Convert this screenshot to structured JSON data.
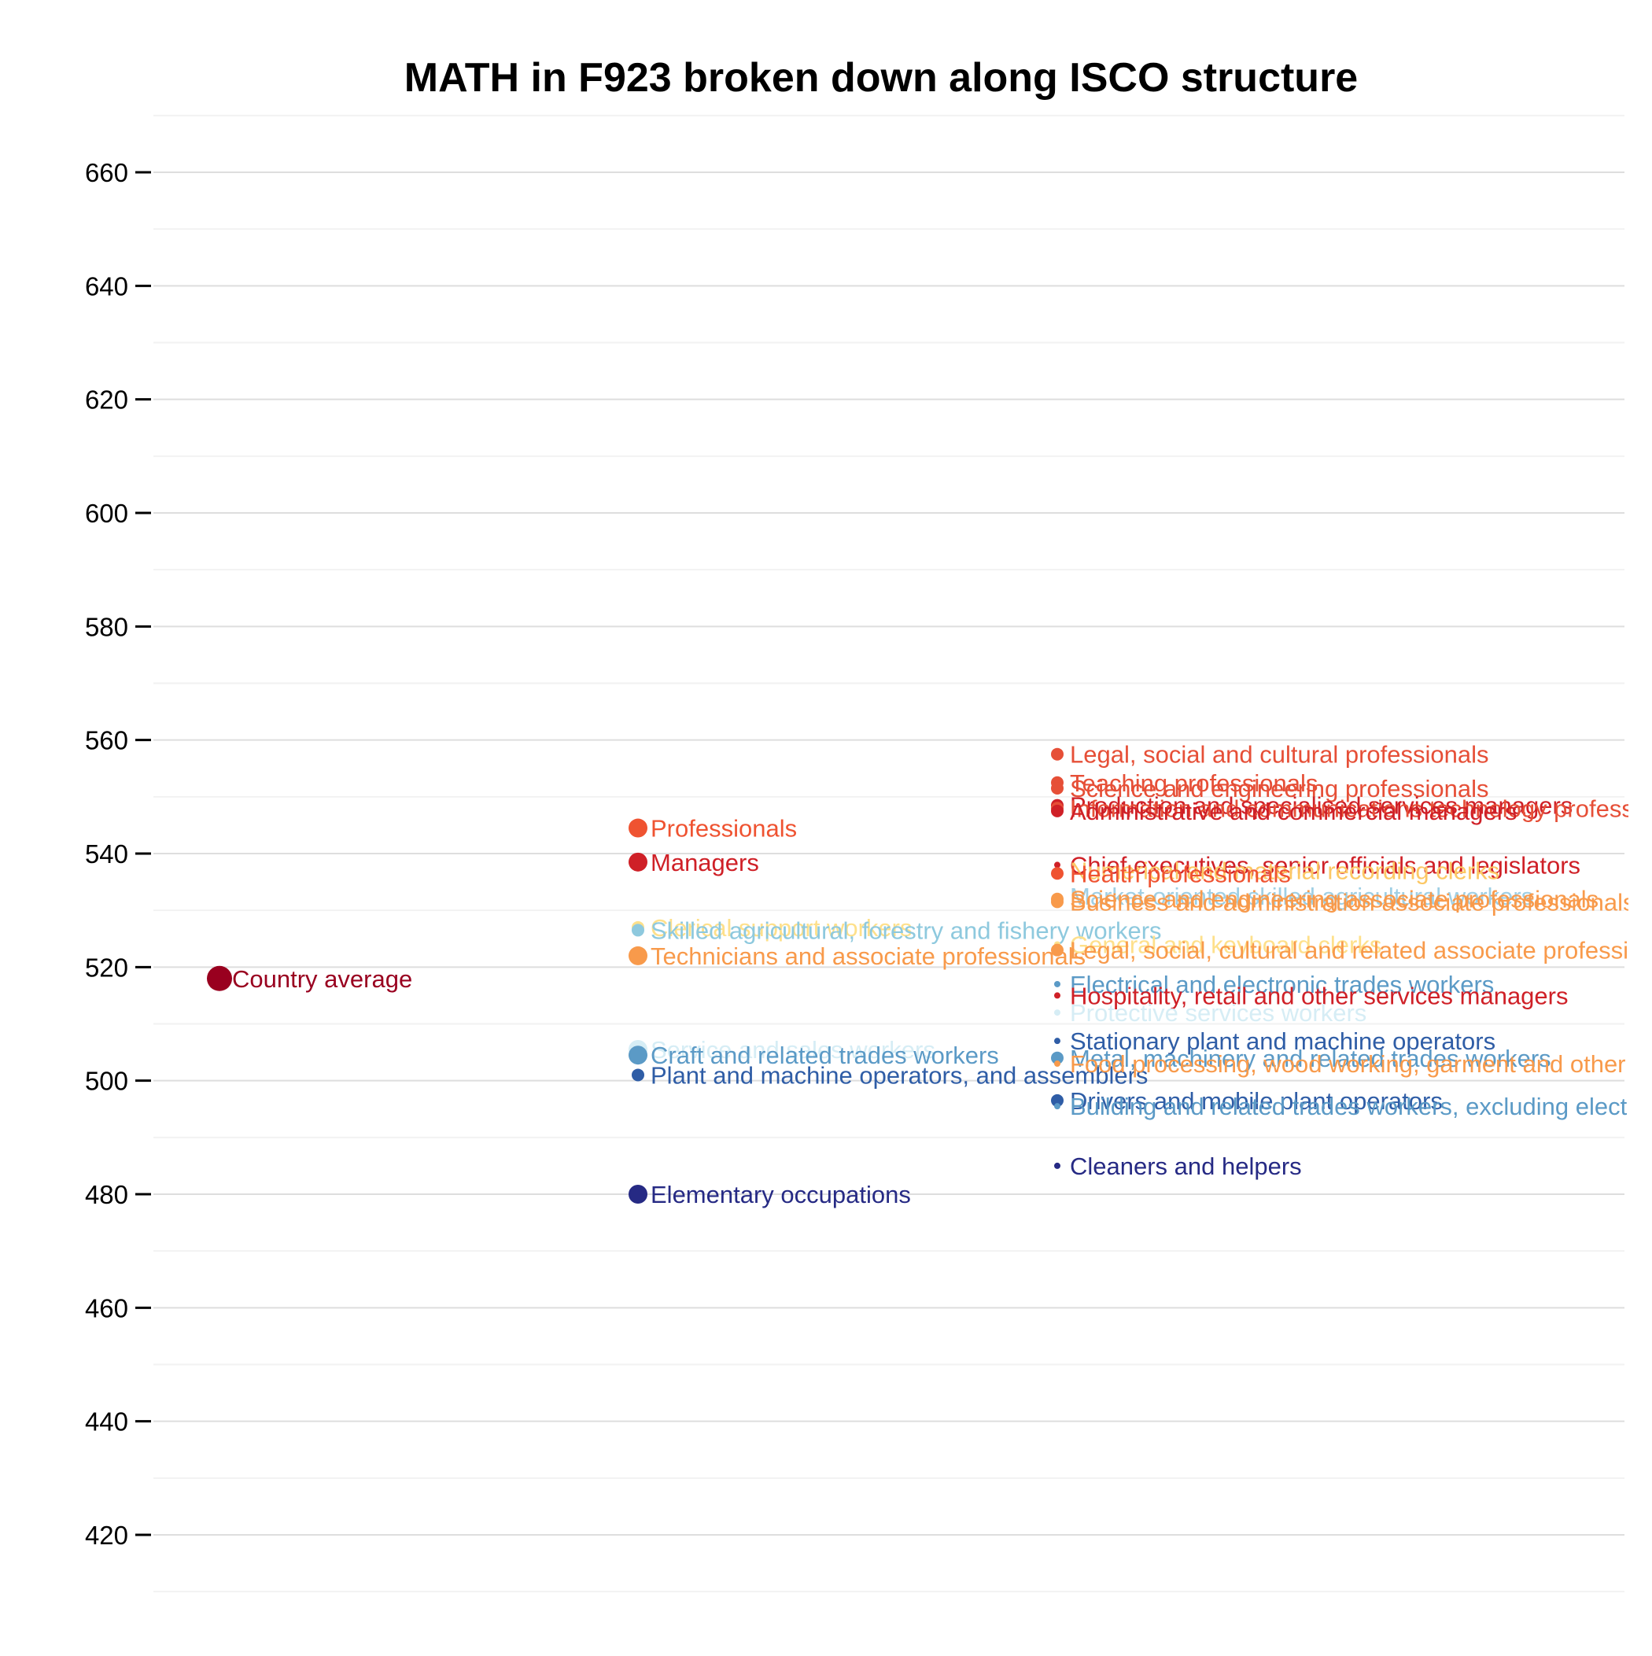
{
  "chart_data": {
    "type": "scatter",
    "title": "MATH in F923 broken down along ISCO structure",
    "xlabel": "",
    "ylabel": "",
    "ylim": [
      408,
      670
    ],
    "y_ticks": [
      420,
      440,
      460,
      480,
      500,
      520,
      540,
      560,
      580,
      600,
      620,
      640,
      660
    ],
    "grid": true,
    "legend": "none",
    "x_levels": [
      1,
      2,
      3
    ],
    "points": [
      {
        "level": 1,
        "label": "Country average",
        "value": 518,
        "size": "large",
        "color": "#99001f"
      },
      {
        "level": 2,
        "label": "Professionals",
        "value": 544.5,
        "size": "medium",
        "color": "#ef5331"
      },
      {
        "level": 2,
        "label": "Managers",
        "value": 538.5,
        "size": "medium",
        "color": "#cf2027"
      },
      {
        "level": 2,
        "label": "Clerical support workers",
        "value": 527,
        "size": "small",
        "color": "#fee08b"
      },
      {
        "level": 2,
        "label": "Skilled agricultural, forestry and fishery workers",
        "value": 526.5,
        "size": "small",
        "color": "#8ec9de"
      },
      {
        "level": 2,
        "label": "Technicians and associate professionals",
        "value": 522,
        "size": "medium",
        "color": "#f89a4b"
      },
      {
        "level": 2,
        "label": "Service and sales workers",
        "value": 505.5,
        "size": "medium",
        "color": "#d6edf5"
      },
      {
        "level": 2,
        "label": "Craft and related trades workers",
        "value": 504.5,
        "size": "medium",
        "color": "#5b9ac6"
      },
      {
        "level": 2,
        "label": "Plant and machine operators, and assemblers",
        "value": 501,
        "size": "small",
        "color": "#2f5da6"
      },
      {
        "level": 2,
        "label": "Elementary occupations",
        "value": 480,
        "size": "medium",
        "color": "#262a84"
      },
      {
        "level": 3,
        "label": "Legal, social and cultural professionals",
        "value": 557.5,
        "size": "small",
        "color": "#e64f37"
      },
      {
        "level": 3,
        "label": "Teaching professionals",
        "value": 552.5,
        "size": "small",
        "color": "#e64f37"
      },
      {
        "level": 3,
        "label": "Science and engineering professionals",
        "value": 551.5,
        "size": "small",
        "color": "#e64f37"
      },
      {
        "level": 3,
        "label": "Production and specialised services managers",
        "value": 548.5,
        "size": "small",
        "color": "#cf2027"
      },
      {
        "level": 3,
        "label": "Information and communications technology professionals",
        "value": 548,
        "size": "small",
        "color": "#e64f37"
      },
      {
        "level": 3,
        "label": "Administrative and commercial managers",
        "value": 547.5,
        "size": "small",
        "color": "#cf2027"
      },
      {
        "level": 3,
        "label": "Chief executives, senior officials and legislators",
        "value": 538,
        "size": "tiny",
        "color": "#cf2027"
      },
      {
        "level": 3,
        "label": "Numerical and material recording clerks",
        "value": 537,
        "size": "tiny",
        "color": "#fcc865"
      },
      {
        "level": 3,
        "label": "Health professionals",
        "value": 536.5,
        "size": "small",
        "color": "#ef5331"
      },
      {
        "level": 3,
        "label": "Market-oriented skilled agricultural workers",
        "value": 532.5,
        "size": "tiny",
        "color": "#9fcfe4"
      },
      {
        "level": 3,
        "label": "Science and engineering associate professionals",
        "value": 532,
        "size": "small",
        "color": "#f89a4b"
      },
      {
        "level": 3,
        "label": "Business and administration associate professionals",
        "value": 531.5,
        "size": "small",
        "color": "#f89a4b"
      },
      {
        "level": 3,
        "label": "General and keyboard clerks",
        "value": 524,
        "size": "tiny",
        "color": "#fee08b"
      },
      {
        "level": 3,
        "label": "Legal, social, cultural and related associate professionals",
        "value": 523,
        "size": "small",
        "color": "#f89a4b"
      },
      {
        "level": 3,
        "label": "Electrical and electronic trades workers",
        "value": 517,
        "size": "tiny",
        "color": "#5b9ac6"
      },
      {
        "level": 3,
        "label": "Hospitality, retail and other services managers",
        "value": 515,
        "size": "tiny",
        "color": "#cf2027"
      },
      {
        "level": 3,
        "label": "Protective services workers",
        "value": 512,
        "size": "tiny",
        "color": "#d6edf5"
      },
      {
        "level": 3,
        "label": "Stationary plant and machine operators",
        "value": 507,
        "size": "tiny",
        "color": "#2f5da6"
      },
      {
        "level": 3,
        "label": "Metal, machinery and related trades workers",
        "value": 504,
        "size": "small",
        "color": "#5b9ac6"
      },
      {
        "level": 3,
        "label": "Food processing, wood working, garment and other craft and related trades workers",
        "value": 503,
        "size": "tiny",
        "color": "#f89a4b"
      },
      {
        "level": 3,
        "label": "Drivers and mobile plant operators",
        "value": 496.5,
        "size": "small",
        "color": "#2f5da6"
      },
      {
        "level": 3,
        "label": "Building and related trades workers, excluding electricians",
        "value": 495.5,
        "size": "tiny",
        "color": "#5b9ac6"
      },
      {
        "level": 3,
        "label": "Cleaners and helpers",
        "value": 485,
        "size": "tiny",
        "color": "#262a84"
      }
    ]
  }
}
